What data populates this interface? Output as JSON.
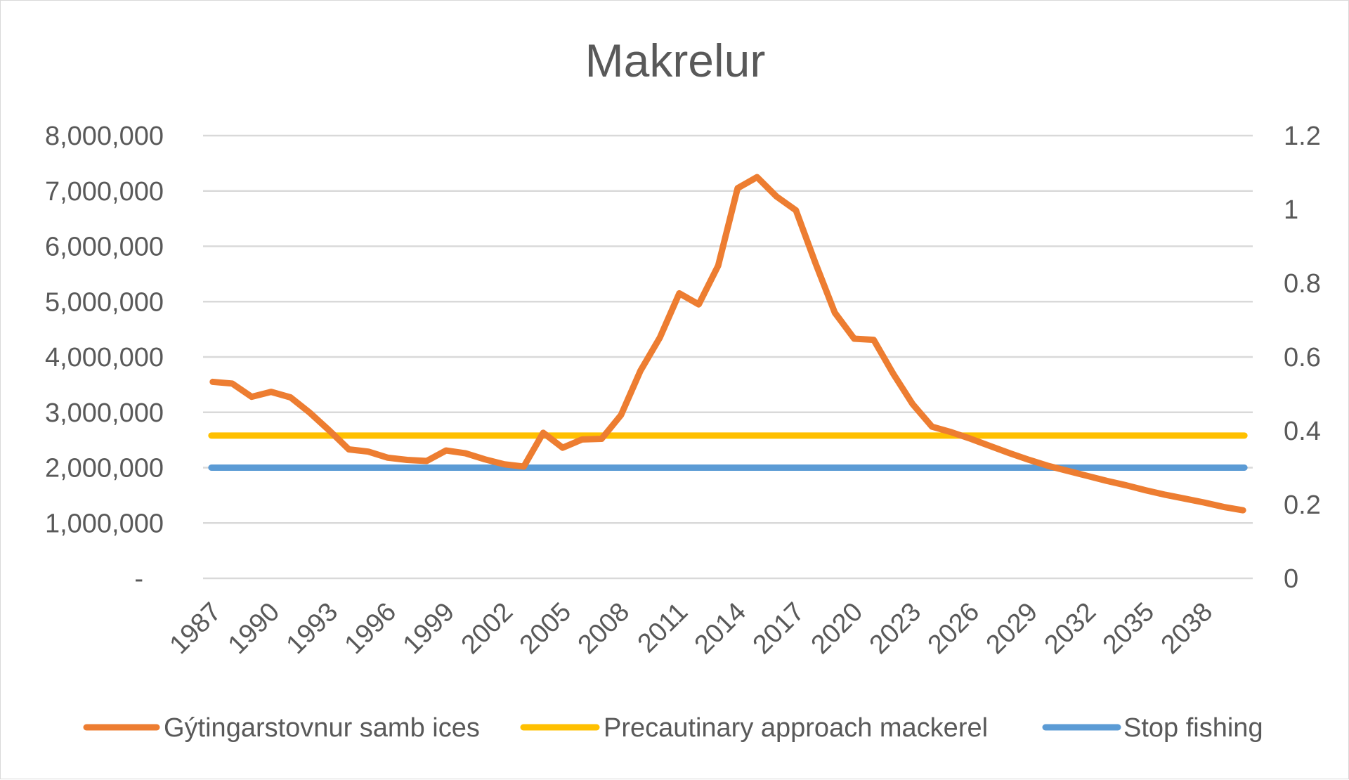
{
  "chart_data": {
    "type": "line",
    "title": "Makrelur",
    "x_ticks": [
      "1987",
      "1990",
      "1993",
      "1996",
      "1999",
      "2002",
      "2005",
      "2008",
      "2011",
      "2014",
      "2017",
      "2020",
      "2023",
      "2026",
      "2029",
      "2032",
      "2035",
      "2038"
    ],
    "y_left_ticks": [
      "-",
      "1,000,000",
      "2,000,000",
      "3,000,000",
      "4,000,000",
      "5,000,000",
      "6,000,000",
      "7,000,000",
      "8,000,000"
    ],
    "y_left_range": [
      0,
      8000000
    ],
    "y_right_ticks": [
      "0",
      "0.2",
      "0.4",
      "0.6",
      "0.8",
      "1",
      "1.2"
    ],
    "y_right_range": [
      0,
      1.2
    ],
    "x_range": [
      1987,
      2040
    ],
    "grid": true,
    "legend_position": "bottom",
    "series": [
      {
        "name": "Gýtingarstovnur samb ices",
        "color": "#ED7D31",
        "x": [
          1987,
          1988,
          1989,
          1990,
          1991,
          1992,
          1993,
          1994,
          1995,
          1996,
          1997,
          1998,
          1999,
          2000,
          2001,
          2002,
          2003,
          2004,
          2005,
          2006,
          2007,
          2008,
          2009,
          2010,
          2011,
          2012,
          2013,
          2014,
          2015,
          2016,
          2017,
          2018,
          2019,
          2020,
          2021,
          2022,
          2023,
          2024,
          2025,
          2026,
          2027,
          2028,
          2029,
          2030,
          2031,
          2032,
          2033,
          2034,
          2035,
          2036,
          2037,
          2038,
          2039,
          2040
        ],
        "values": [
          3550000,
          3520000,
          3280000,
          3370000,
          3270000,
          2990000,
          2670000,
          2330000,
          2290000,
          2180000,
          2140000,
          2120000,
          2310000,
          2260000,
          2150000,
          2060000,
          2020000,
          2630000,
          2360000,
          2510000,
          2520000,
          2950000,
          3750000,
          4350000,
          5150000,
          4950000,
          5650000,
          7050000,
          7250000,
          6900000,
          6650000,
          5700000,
          4800000,
          4330000,
          4310000,
          3700000,
          3150000,
          2740000,
          2640000,
          2520000,
          2390000,
          2260000,
          2140000,
          2030000,
          1940000,
          1850000,
          1760000,
          1680000,
          1590000,
          1510000,
          1440000,
          1370000,
          1290000,
          1230000
        ]
      },
      {
        "name": "Precautinary approach mackerel",
        "color": "#FFC000",
        "x": [
          1987,
          2040
        ],
        "values": [
          2580000,
          2580000
        ]
      },
      {
        "name": "Stop fishing",
        "color": "#5B9BD5",
        "x": [
          1987,
          2040
        ],
        "values": [
          2000000,
          2000000
        ]
      }
    ]
  }
}
